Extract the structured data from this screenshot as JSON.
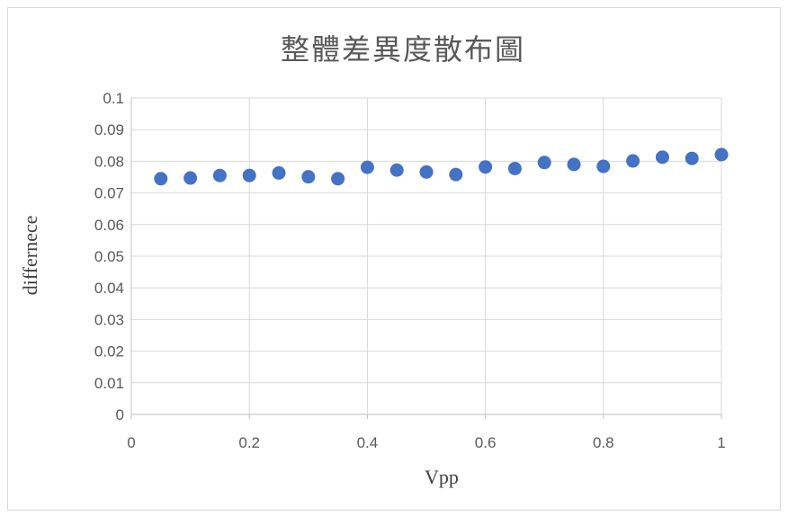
{
  "chart_data": {
    "type": "scatter",
    "title": "整體差異度散布圖",
    "xlabel": "Vpp",
    "ylabel": "differnece",
    "xlim": [
      0,
      1
    ],
    "ylim": [
      0,
      0.1
    ],
    "x_ticks": [
      "0",
      "0.2",
      "0.4",
      "0.6",
      "0.8",
      "1"
    ],
    "y_ticks": [
      "0",
      "0.01",
      "0.02",
      "0.03",
      "0.04",
      "0.05",
      "0.06",
      "0.07",
      "0.08",
      "0.09",
      "0.1"
    ],
    "grid": true,
    "legend": "none",
    "marker_color": "#4472c4",
    "series": [
      {
        "x": [
          0.05,
          0.1,
          0.15,
          0.2,
          0.25,
          0.3,
          0.35,
          0.4,
          0.45,
          0.5,
          0.55,
          0.6,
          0.65,
          0.7,
          0.75,
          0.8,
          0.85,
          0.9,
          0.95,
          1.0
        ],
        "y": [
          0.0745,
          0.0747,
          0.0755,
          0.0755,
          0.0763,
          0.0751,
          0.0745,
          0.0781,
          0.0772,
          0.0766,
          0.0758,
          0.0782,
          0.0777,
          0.0796,
          0.079,
          0.0784,
          0.0801,
          0.0813,
          0.0809,
          0.0821
        ]
      }
    ]
  }
}
